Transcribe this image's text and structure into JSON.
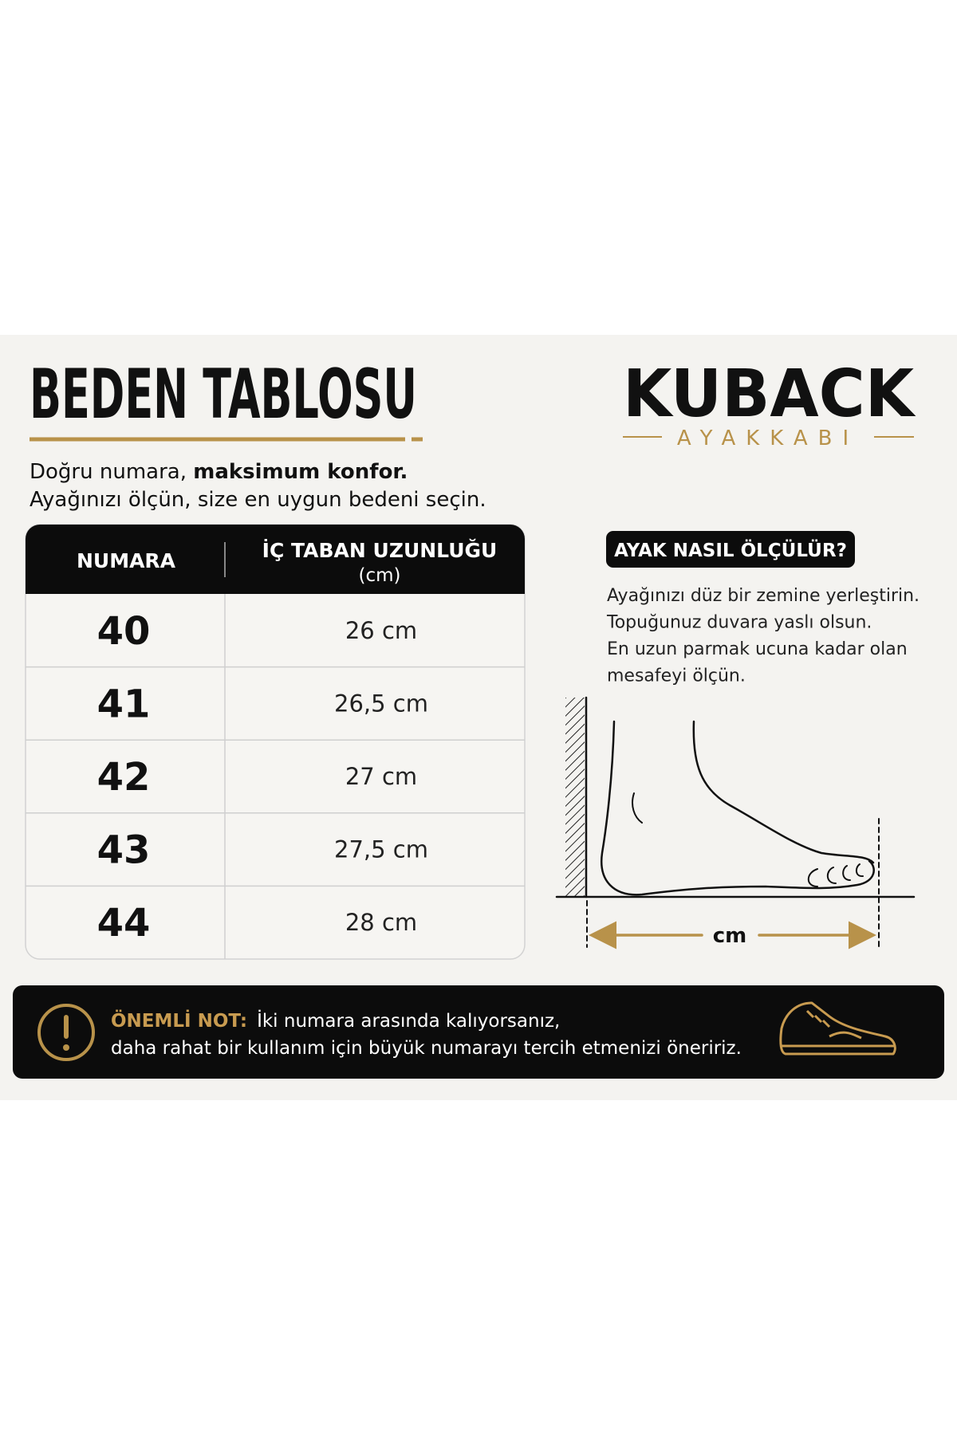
{
  "header": {
    "title": "BEDEN TABLOSU",
    "tagline_normal": "Doğru numara, ",
    "tagline_bold": "maksimum konfor.",
    "tagline_line2": "Ayağınızı ölçün, size en uygun bedeni seçin."
  },
  "brand": {
    "name": "KUBACK",
    "sub": "AYAKKABI"
  },
  "table": {
    "header_size": "NUMARA",
    "header_length": "İÇ TABAN UZUNLUĞU",
    "header_unit": "(cm)",
    "rows": [
      [
        "40",
        "26 cm"
      ],
      [
        "41",
        "26,5 cm"
      ],
      [
        "42",
        "27 cm"
      ],
      [
        "43",
        "27,5 cm"
      ],
      [
        "44",
        "28 cm"
      ]
    ]
  },
  "guide": {
    "title": "AYAK NASIL ÖLÇÜLÜR?",
    "lines": [
      "Ayağınızı düz bir zemine yerleştirin.",
      "Topuğunuz duvara yaslı olsun.",
      "En uzun parmak ucuna kadar olan",
      "mesafeyi ölçün."
    ],
    "measure_label": "cm"
  },
  "note": {
    "label": "ÖNEMLİ NOT:",
    "lines": [
      "İki numara arasında kalıyorsanız,",
      "daha rahat bir kullanım için büyük numarayı tercih etmenizi öneririz."
    ]
  }
}
